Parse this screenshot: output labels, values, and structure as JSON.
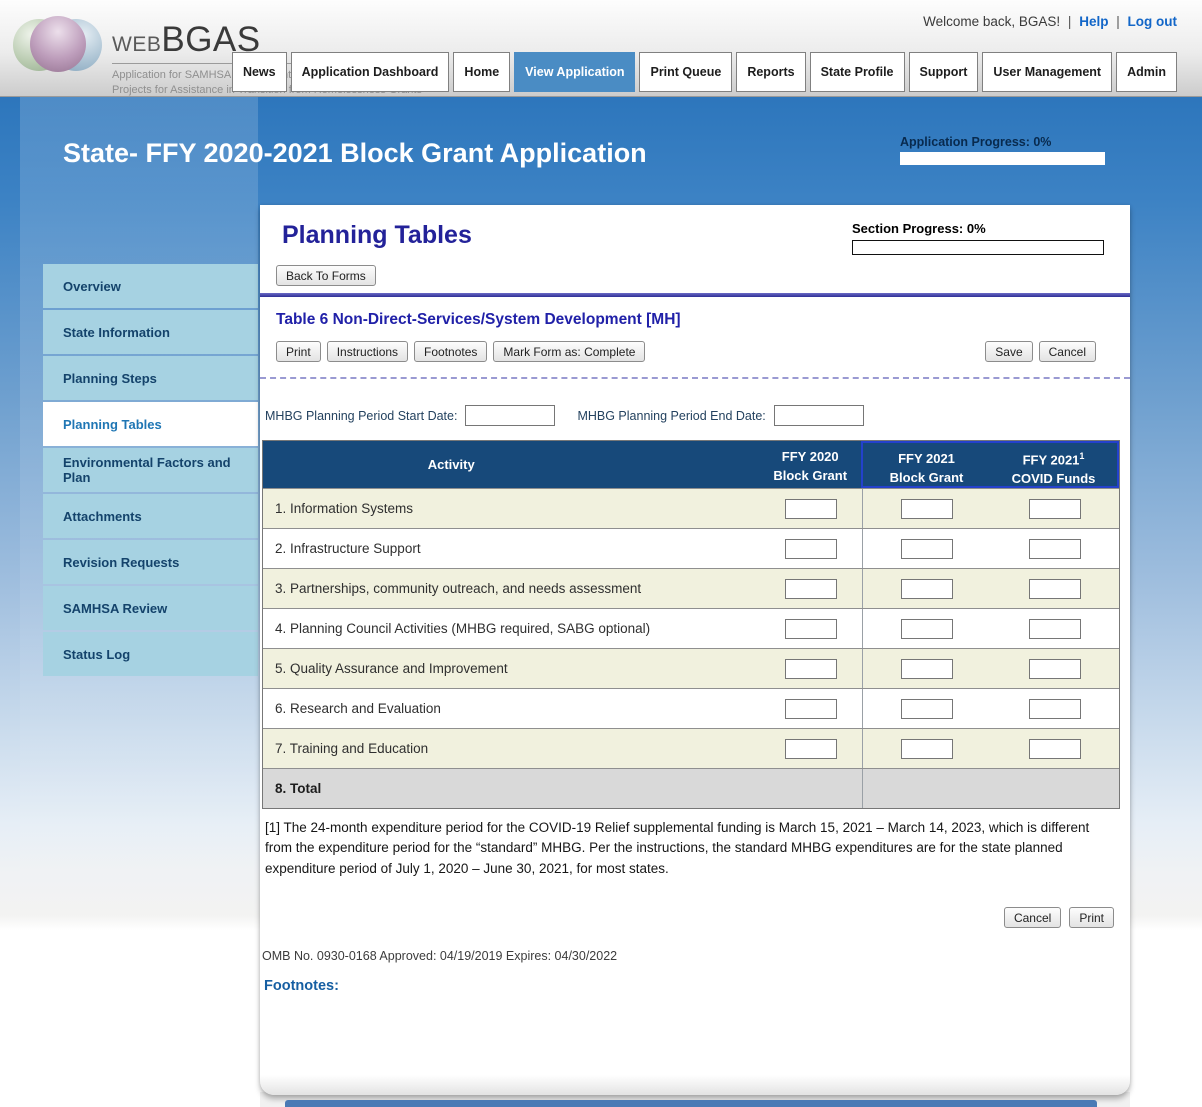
{
  "header": {
    "logo": {
      "brand_web": "WEB",
      "brand_bgas": "BGAS",
      "tagline1": "Application for SAMHSA Block Grants and",
      "tagline2": "Projects for Assistance in Transition from Homelessness Grants"
    },
    "welcome_text": "Welcome back, BGAS!",
    "sep": "|",
    "help": "Help",
    "logout": "Log out",
    "nav": [
      "News",
      "Application Dashboard",
      "Home",
      "View Application",
      "Print Queue",
      "Reports",
      "State Profile",
      "Support",
      "User Management",
      "Admin"
    ],
    "active_nav": "View Application"
  },
  "banner": {
    "title": "State- FFY 2020-2021 Block Grant Application",
    "progress_label": "Application Progress: 0%"
  },
  "sidebar": {
    "items": [
      "Overview",
      "State Information",
      "Planning Steps",
      "Planning Tables",
      "Environmental Factors and Plan",
      "Attachments",
      "Revision Requests",
      "SAMHSA Review",
      "Status Log"
    ],
    "active_item": "Planning Tables"
  },
  "content": {
    "page_title": "Planning Tables",
    "section_progress_label": "Section Progress: 0%",
    "back_button": "Back To Forms",
    "table_title": "Table 6 Non-Direct-Services/System Development [MH]",
    "toolbar": {
      "print": "Print",
      "instructions": "Instructions",
      "footnotes": "Footnotes",
      "mark_complete": "Mark Form as: Complete",
      "save": "Save",
      "cancel": "Cancel"
    },
    "dates": {
      "start_label": "MHBG Planning Period Start Date:",
      "end_label": "MHBG Planning Period End Date:",
      "start_value": "",
      "end_value": ""
    },
    "table": {
      "headers": {
        "activity": "Activity",
        "col1_line1": "FFY 2020",
        "col1_line2": "Block Grant",
        "col2_line1": "FFY 2021",
        "col2_line2": "Block Grant",
        "col3_line1": "FFY 2021",
        "col3_sup": "1",
        "col3_line2": "COVID Funds"
      },
      "rows": [
        {
          "label": "1. Information Systems",
          "ffy2020": "",
          "ffy2021": "",
          "covid": ""
        },
        {
          "label": "2. Infrastructure Support",
          "ffy2020": "",
          "ffy2021": "",
          "covid": ""
        },
        {
          "label": "3. Partnerships, community outreach, and needs assessment",
          "ffy2020": "",
          "ffy2021": "",
          "covid": ""
        },
        {
          "label": "4. Planning Council Activities (MHBG required, SABG optional)",
          "ffy2020": "",
          "ffy2021": "",
          "covid": ""
        },
        {
          "label": "5. Quality Assurance and Improvement",
          "ffy2020": "",
          "ffy2021": "",
          "covid": ""
        },
        {
          "label": "6. Research and Evaluation",
          "ffy2020": "",
          "ffy2021": "",
          "covid": ""
        },
        {
          "label": "7. Training and Education",
          "ffy2020": "",
          "ffy2021": "",
          "covid": ""
        },
        {
          "label": "8. Total"
        }
      ]
    },
    "footnote_1": "[1] The 24-month expenditure period for the COVID-19 Relief supplemental funding is March 15, 2021 – March 14, 2023, which is different from the expenditure period for the “standard” MHBG. Per the instructions, the standard MHBG expenditures are for the state planned expenditure period of July 1, 2020 – June 30, 2021, for most states.",
    "bottom_buttons": {
      "cancel": "Cancel",
      "print": "Print"
    },
    "omb": "OMB No. 0930-0168 Approved: 04/19/2019 Expires: 04/30/2022",
    "footnotes_heading": "Footnotes:"
  },
  "colors": {
    "table_header_navy": "#17497A",
    "covid_border_blue": "#2441CC",
    "row_cream": "#F1F1DE",
    "row_total_gray": "#D9D9D9",
    "nav_active_blue": "#4A8CC4",
    "link_blue": "#1266C8",
    "title_blue": "#232299",
    "sidebar_item_blue": "#A6D2E2",
    "banner_blue_top": "#2D76BC"
  }
}
